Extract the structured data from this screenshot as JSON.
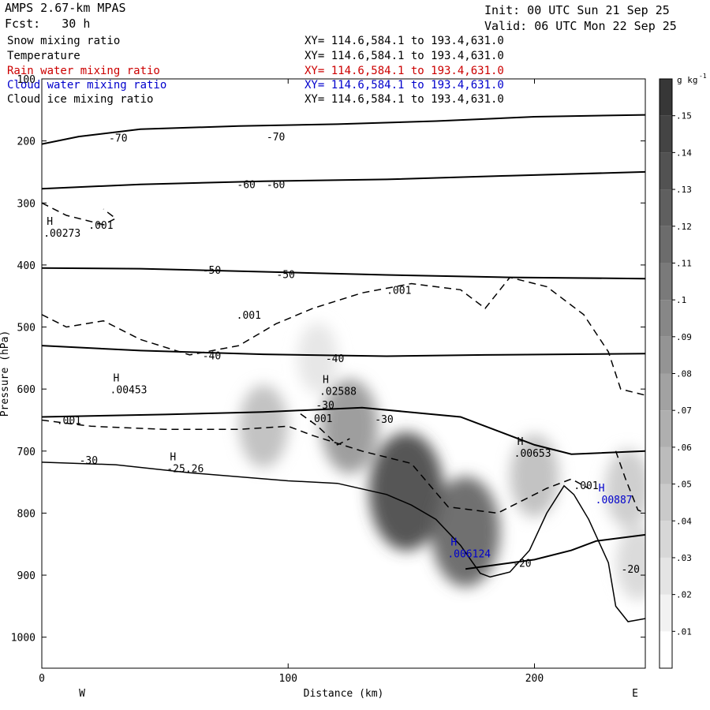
{
  "header": {
    "model": "AMPS 2.67-km MPAS",
    "forecast": "Fcst:   30 h",
    "init": "Init: 00 UTC Sun 21 Sep 25",
    "valid": "Valid: 06 UTC Mon 22 Sep 25"
  },
  "variables": [
    {
      "name": "Snow mixing ratio",
      "xy": "XY= 114.6,584.1 to 193.4,631.0",
      "color": "#000000"
    },
    {
      "name": "Temperature",
      "xy": "XY= 114.6,584.1 to 193.4,631.0",
      "color": "#000000"
    },
    {
      "name": "Rain water mixing ratio",
      "xy": "XY= 114.6,584.1 to 193.4,631.0",
      "color": "#cc0000"
    },
    {
      "name": "Cloud water mixing ratio",
      "xy": "XY= 114.6,584.1 to 193.4,631.0",
      "color": "#0000cc"
    },
    {
      "name": "Cloud ice mixing ratio",
      "xy": "XY= 114.6,584.1 to 193.4,631.0",
      "color": "#000000"
    }
  ],
  "chart_data": {
    "type": "contour-cross-section",
    "xlabel": "Distance (km)",
    "ylabel": "Pressure (hPa)",
    "xlim": [
      0,
      245
    ],
    "ylim": [
      1050,
      100
    ],
    "x_ticks": [
      0,
      100,
      200
    ],
    "y_ticks": [
      100,
      200,
      300,
      400,
      500,
      600,
      700,
      800,
      900,
      1000
    ],
    "direction_left": "W",
    "direction_right": "E",
    "colorbar": {
      "unit": "g kg",
      "unit_exp": "-1",
      "levels": [
        ".01",
        ".02",
        ".03",
        ".04",
        ".05",
        ".06",
        ".07",
        ".08",
        ".09",
        ".1",
        ".11",
        ".12",
        ".13",
        ".14",
        ".15"
      ]
    },
    "temperature_isotherms": [
      {
        "label": "-70",
        "points": [
          [
            0,
            205
          ],
          [
            15,
            193
          ],
          [
            40,
            181
          ],
          [
            80,
            176
          ],
          [
            120,
            173
          ],
          [
            160,
            168
          ],
          [
            200,
            161
          ],
          [
            245,
            158
          ]
        ]
      },
      {
        "label": "-60",
        "points": [
          [
            0,
            277
          ],
          [
            40,
            270
          ],
          [
            90,
            265
          ],
          [
            140,
            262
          ],
          [
            190,
            256
          ],
          [
            245,
            250
          ]
        ]
      },
      {
        "label": "-50",
        "points": [
          [
            0,
            405
          ],
          [
            40,
            406
          ],
          [
            90,
            411
          ],
          [
            140,
            416
          ],
          [
            190,
            420
          ],
          [
            245,
            422
          ]
        ]
      },
      {
        "label": "-40",
        "points": [
          [
            0,
            530
          ],
          [
            40,
            538
          ],
          [
            90,
            544
          ],
          [
            140,
            547
          ],
          [
            180,
            545
          ],
          [
            245,
            543
          ]
        ]
      },
      {
        "label": "-30",
        "points": [
          [
            0,
            645
          ],
          [
            50,
            641
          ],
          [
            90,
            637
          ],
          [
            130,
            630
          ],
          [
            170,
            645
          ],
          [
            200,
            690
          ],
          [
            215,
            705
          ],
          [
            245,
            700
          ]
        ]
      },
      {
        "label": "-20",
        "points": [
          [
            172,
            890
          ],
          [
            200,
            875
          ],
          [
            215,
            860
          ],
          [
            225,
            845
          ],
          [
            245,
            835
          ]
        ]
      }
    ],
    "isotherm_labels": [
      {
        "text": "-70",
        "x": 31,
        "p": 195
      },
      {
        "text": "-70",
        "x": 95,
        "p": 193
      },
      {
        "text": "-60",
        "x": 83,
        "p": 270
      },
      {
        "text": "-60",
        "x": 95,
        "p": 270
      },
      {
        "text": "-50",
        "x": 69,
        "p": 408
      },
      {
        "text": "-50",
        "x": 99,
        "p": 415
      },
      {
        "text": "-40",
        "x": 69,
        "p": 546
      },
      {
        "text": "-40",
        "x": 119,
        "p": 550
      },
      {
        "text": "-30",
        "x": 19,
        "p": 714
      },
      {
        "text": "-30",
        "x": 139,
        "p": 648
      },
      {
        "text": "-30",
        "x": 115,
        "p": 625
      },
      {
        "text": "-20",
        "x": 195,
        "p": 880
      },
      {
        "text": "-20",
        "x": 239,
        "p": 890
      }
    ],
    "snow_contour_label": ".001",
    "snow_labels": [
      {
        "text": ".001",
        "x": 24,
        "p": 335
      },
      {
        "text": ".001",
        "x": 145,
        "p": 440
      },
      {
        "text": ".001",
        "x": 84,
        "p": 480
      },
      {
        "text": ".001",
        "x": 11,
        "p": 650
      },
      {
        "text": ".001",
        "x": 113,
        "p": 647
      },
      {
        "text": ".001",
        "x": 221,
        "p": 755
      }
    ],
    "extrema": [
      {
        "mark": "H",
        "value": ".00273",
        "x": 2,
        "p": 335,
        "color": "#000000"
      },
      {
        "mark": "H",
        "value": ".00453",
        "x": 29,
        "p": 588,
        "color": "#000000"
      },
      {
        "mark": "H",
        "value": ".02588",
        "x": 114,
        "p": 590,
        "color": "#000000"
      },
      {
        "mark": "H",
        "value": "-25.26",
        "x": 52,
        "p": 715,
        "color": "#000000"
      },
      {
        "mark": "H",
        "value": ".00653",
        "x": 193,
        "p": 690,
        "color": "#000000"
      },
      {
        "mark": "H",
        "value": ".006124",
        "x": 166,
        "p": 852,
        "color": "#0000cc"
      },
      {
        "mark": "H",
        "value": ".00887",
        "x": 226,
        "p": 765,
        "color": "#0000cc"
      }
    ],
    "terrain": [
      [
        0,
        718
      ],
      [
        30,
        722
      ],
      [
        60,
        735
      ],
      [
        100,
        748
      ],
      [
        120,
        752
      ],
      [
        140,
        770
      ],
      [
        150,
        787
      ],
      [
        160,
        810
      ],
      [
        170,
        852
      ],
      [
        178,
        897
      ],
      [
        182,
        903
      ],
      [
        190,
        895
      ],
      [
        198,
        860
      ],
      [
        205,
        800
      ],
      [
        212,
        756
      ],
      [
        216,
        770
      ],
      [
        222,
        810
      ],
      [
        230,
        880
      ],
      [
        233,
        950
      ],
      [
        238,
        975
      ],
      [
        245,
        970
      ]
    ],
    "shading_blobs": [
      {
        "x": 90,
        "p": 660,
        "value": 0.05
      },
      {
        "x": 125,
        "p": 660,
        "value": 0.08
      },
      {
        "x": 148,
        "p": 765,
        "value": 0.14
      },
      {
        "x": 172,
        "p": 830,
        "value": 0.12
      },
      {
        "x": 112,
        "p": 550,
        "value": 0.02
      },
      {
        "x": 200,
        "p": 740,
        "value": 0.05
      },
      {
        "x": 238,
        "p": 760,
        "value": 0.04
      },
      {
        "x": 242,
        "p": 880,
        "value": 0.03
      }
    ]
  }
}
